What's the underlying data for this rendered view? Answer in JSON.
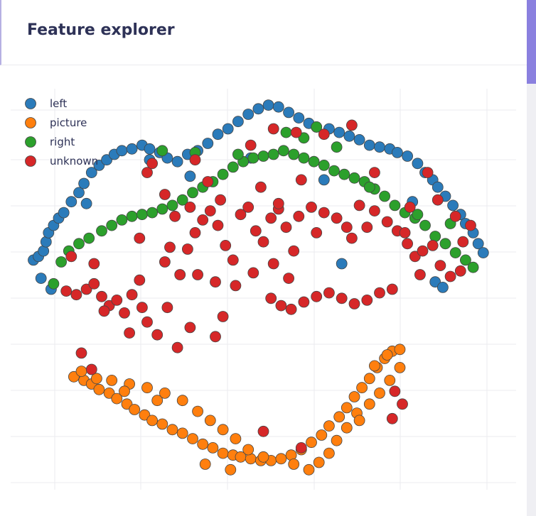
{
  "header": {
    "title": "Feature explorer"
  },
  "chart_data": {
    "type": "scatter",
    "title": "",
    "xlabel": "",
    "ylabel": "",
    "grid": true,
    "legend_position": "top-left",
    "series": [
      {
        "name": "left",
        "color": "#2b7bba",
        "points": [
          [
            -9.1,
            -3.4
          ],
          [
            -8.9,
            -3.2
          ],
          [
            -8.7,
            -2.9
          ],
          [
            -8.6,
            -2.4
          ],
          [
            -8.5,
            -1.9
          ],
          [
            -8.3,
            -1.5
          ],
          [
            -8.1,
            -1.1
          ],
          [
            -7.9,
            -0.8
          ],
          [
            -7.6,
            -0.2
          ],
          [
            -7.3,
            0.3
          ],
          [
            -7.1,
            0.8
          ],
          [
            -6.8,
            1.4
          ],
          [
            -6.5,
            1.8
          ],
          [
            -6.2,
            2.1
          ],
          [
            -5.9,
            2.4
          ],
          [
            -5.6,
            2.6
          ],
          [
            -5.2,
            2.7
          ],
          [
            -4.8,
            2.9
          ],
          [
            -4.5,
            2.7
          ],
          [
            -4.1,
            2.5
          ],
          [
            -3.8,
            2.2
          ],
          [
            -3.4,
            2.0
          ],
          [
            -3.0,
            2.4
          ],
          [
            -2.6,
            2.6
          ],
          [
            -2.2,
            3.0
          ],
          [
            -1.8,
            3.5
          ],
          [
            -1.4,
            3.8
          ],
          [
            -1.0,
            4.2
          ],
          [
            -0.6,
            4.6
          ],
          [
            -0.2,
            4.9
          ],
          [
            0.2,
            5.1
          ],
          [
            0.6,
            5.0
          ],
          [
            1.0,
            4.7
          ],
          [
            1.4,
            4.4
          ],
          [
            1.8,
            4.1
          ],
          [
            2.1,
            3.9
          ],
          [
            2.6,
            3.8
          ],
          [
            3.0,
            3.6
          ],
          [
            3.4,
            3.4
          ],
          [
            3.8,
            3.2
          ],
          [
            4.2,
            2.9
          ],
          [
            4.6,
            2.8
          ],
          [
            5.0,
            2.7
          ],
          [
            5.3,
            2.5
          ],
          [
            5.7,
            2.3
          ],
          [
            6.1,
            1.9
          ],
          [
            6.4,
            1.4
          ],
          [
            6.7,
            1.0
          ],
          [
            6.9,
            0.6
          ],
          [
            7.2,
            0.1
          ],
          [
            7.5,
            -0.4
          ],
          [
            7.8,
            -0.9
          ],
          [
            8.0,
            -1.4
          ],
          [
            8.3,
            -1.9
          ],
          [
            8.5,
            -2.5
          ],
          [
            8.7,
            -3.0
          ],
          [
            -8.8,
            -4.4
          ],
          [
            -8.4,
            -5.0
          ],
          [
            -7.0,
            -0.3
          ],
          [
            6.8,
            -4.6
          ],
          [
            7.1,
            -4.9
          ],
          [
            3.1,
            -3.6
          ],
          [
            -4.5,
            2.1
          ],
          [
            -2.9,
            1.2
          ],
          [
            -0.5,
            2.2
          ],
          [
            2.4,
            1.0
          ],
          [
            5.9,
            -0.2
          ]
        ]
      },
      {
        "name": "picture",
        "color": "#ff7f0e",
        "points": [
          [
            -7.5,
            -9.8
          ],
          [
            -7.1,
            -10.0
          ],
          [
            -6.8,
            -10.2
          ],
          [
            -6.5,
            -10.5
          ],
          [
            -6.1,
            -10.7
          ],
          [
            -5.8,
            -11.0
          ],
          [
            -5.4,
            -11.3
          ],
          [
            -5.1,
            -11.6
          ],
          [
            -4.7,
            -11.9
          ],
          [
            -4.4,
            -12.2
          ],
          [
            -4.0,
            -12.4
          ],
          [
            -3.6,
            -12.7
          ],
          [
            -3.2,
            -12.9
          ],
          [
            -2.8,
            -13.2
          ],
          [
            -2.4,
            -13.5
          ],
          [
            -2.0,
            -13.7
          ],
          [
            -1.6,
            -14.0
          ],
          [
            -1.2,
            -14.1
          ],
          [
            -0.9,
            -14.2
          ],
          [
            -0.5,
            -14.3
          ],
          [
            -0.1,
            -14.4
          ],
          [
            0.3,
            -14.4
          ],
          [
            0.7,
            -14.3
          ],
          [
            1.1,
            -14.1
          ],
          [
            1.5,
            -13.8
          ],
          [
            1.9,
            -13.4
          ],
          [
            2.3,
            -13.0
          ],
          [
            2.6,
            -12.5
          ],
          [
            3.0,
            -12.0
          ],
          [
            3.3,
            -11.5
          ],
          [
            3.6,
            -10.9
          ],
          [
            3.9,
            -10.4
          ],
          [
            4.2,
            -9.9
          ],
          [
            4.5,
            -9.3
          ],
          [
            4.8,
            -8.8
          ],
          [
            5.1,
            -8.4
          ],
          [
            5.4,
            -8.3
          ],
          [
            -6.0,
            -10.0
          ],
          [
            -5.3,
            -10.2
          ],
          [
            -4.6,
            -10.4
          ],
          [
            -3.9,
            -10.7
          ],
          [
            -3.2,
            -11.1
          ],
          [
            -2.6,
            -11.7
          ],
          [
            -2.1,
            -12.2
          ],
          [
            -1.6,
            -12.7
          ],
          [
            -1.1,
            -13.2
          ],
          [
            -0.6,
            -13.8
          ],
          [
            1.8,
            -14.9
          ],
          [
            2.2,
            -14.5
          ],
          [
            2.6,
            -14.0
          ],
          [
            2.9,
            -13.3
          ],
          [
            3.3,
            -12.6
          ],
          [
            3.7,
            -11.8
          ],
          [
            4.2,
            -11.3
          ],
          [
            4.6,
            -10.7
          ],
          [
            5.0,
            -10.0
          ],
          [
            5.4,
            -9.3
          ],
          [
            -2.3,
            -14.6
          ],
          [
            -1.3,
            -14.9
          ],
          [
            -4.2,
            -11.1
          ],
          [
            -5.5,
            -10.6
          ],
          [
            -7.2,
            -9.5
          ],
          [
            -6.6,
            -9.9
          ],
          [
            0.0,
            -14.2
          ],
          [
            1.2,
            -14.6
          ],
          [
            3.8,
            -12.2
          ],
          [
            4.4,
            -9.2
          ],
          [
            4.9,
            -8.6
          ]
        ]
      },
      {
        "name": "right",
        "color": "#2ca02c",
        "points": [
          [
            -8.3,
            -4.7
          ],
          [
            -8.0,
            -3.5
          ],
          [
            -7.7,
            -2.9
          ],
          [
            -7.3,
            -2.5
          ],
          [
            -6.9,
            -2.2
          ],
          [
            -6.4,
            -1.8
          ],
          [
            -6.0,
            -1.5
          ],
          [
            -5.6,
            -1.2
          ],
          [
            -5.2,
            -1.0
          ],
          [
            -4.8,
            -0.9
          ],
          [
            -4.4,
            -0.8
          ],
          [
            -4.0,
            -0.6
          ],
          [
            -3.6,
            -0.4
          ],
          [
            -3.2,
            -0.1
          ],
          [
            -2.8,
            0.3
          ],
          [
            -2.4,
            0.6
          ],
          [
            -2.0,
            0.9
          ],
          [
            -1.6,
            1.3
          ],
          [
            -1.2,
            1.7
          ],
          [
            -0.8,
            2.0
          ],
          [
            -0.4,
            2.2
          ],
          [
            0.0,
            2.3
          ],
          [
            0.4,
            2.4
          ],
          [
            0.8,
            2.6
          ],
          [
            1.2,
            2.4
          ],
          [
            1.6,
            2.2
          ],
          [
            2.0,
            2.0
          ],
          [
            2.4,
            1.8
          ],
          [
            2.8,
            1.5
          ],
          [
            3.2,
            1.3
          ],
          [
            3.6,
            1.1
          ],
          [
            4.0,
            0.9
          ],
          [
            4.4,
            0.5
          ],
          [
            4.8,
            0.1
          ],
          [
            5.2,
            -0.4
          ],
          [
            5.6,
            -0.8
          ],
          [
            6.0,
            -1.1
          ],
          [
            6.4,
            -1.5
          ],
          [
            6.8,
            -2.1
          ],
          [
            7.2,
            -2.5
          ],
          [
            7.6,
            -3.0
          ],
          [
            8.0,
            -3.4
          ],
          [
            8.3,
            -3.8
          ],
          [
            -4.0,
            2.6
          ],
          [
            -2.7,
            2.5
          ],
          [
            -1.0,
            2.4
          ],
          [
            1.6,
            3.3
          ],
          [
            2.9,
            2.8
          ],
          [
            4.2,
            0.6
          ],
          [
            6.1,
            -0.9
          ],
          [
            7.4,
            -1.4
          ],
          [
            0.9,
            3.6
          ],
          [
            2.1,
            3.9
          ]
        ]
      },
      {
        "name": "unknown",
        "color": "#d62728",
        "points": [
          [
            -7.8,
            -5.1
          ],
          [
            -7.4,
            -5.3
          ],
          [
            -7.0,
            -5.0
          ],
          [
            -6.7,
            -4.7
          ],
          [
            -6.4,
            -5.4
          ],
          [
            -6.1,
            -5.9
          ],
          [
            -5.8,
            -5.6
          ],
          [
            -5.5,
            -6.3
          ],
          [
            -5.2,
            -5.3
          ],
          [
            -4.9,
            -4.5
          ],
          [
            -4.6,
            -6.8
          ],
          [
            -4.2,
            -7.5
          ],
          [
            -3.8,
            -6.0
          ],
          [
            -3.3,
            -4.2
          ],
          [
            -3.0,
            -2.8
          ],
          [
            -2.7,
            -1.9
          ],
          [
            -2.4,
            -1.2
          ],
          [
            -2.1,
            -0.7
          ],
          [
            -1.8,
            -1.5
          ],
          [
            -1.5,
            -2.6
          ],
          [
            -1.2,
            -3.4
          ],
          [
            -0.9,
            -0.9
          ],
          [
            -0.6,
            -0.5
          ],
          [
            -0.3,
            -1.8
          ],
          [
            0.0,
            -2.4
          ],
          [
            0.3,
            -1.1
          ],
          [
            0.6,
            -0.6
          ],
          [
            0.9,
            -1.6
          ],
          [
            1.2,
            -2.9
          ],
          [
            -2.6,
            -4.2
          ],
          [
            -1.9,
            -4.6
          ],
          [
            -1.1,
            -4.8
          ],
          [
            -0.4,
            -4.1
          ],
          [
            0.4,
            -3.6
          ],
          [
            1.0,
            -4.4
          ],
          [
            -3.5,
            -1.0
          ],
          [
            -3.9,
            0.2
          ],
          [
            -4.6,
            1.4
          ],
          [
            -1.7,
            -0.1
          ],
          [
            -0.1,
            0.6
          ],
          [
            0.6,
            -0.3
          ],
          [
            1.4,
            -1.0
          ],
          [
            1.9,
            -0.5
          ],
          [
            2.4,
            -0.8
          ],
          [
            -2.9,
            -0.5
          ],
          [
            -2.2,
            0.9
          ],
          [
            2.1,
            -1.9
          ],
          [
            2.9,
            -1.1
          ],
          [
            3.3,
            -1.6
          ],
          [
            3.8,
            -0.4
          ],
          [
            4.4,
            -0.7
          ],
          [
            4.9,
            -1.3
          ],
          [
            5.3,
            -1.8
          ],
          [
            5.7,
            -2.5
          ],
          [
            6.0,
            -3.2
          ],
          [
            6.3,
            -2.9
          ],
          [
            6.7,
            -2.6
          ],
          [
            7.0,
            -3.7
          ],
          [
            7.4,
            -4.3
          ],
          [
            7.8,
            -4.0
          ],
          [
            6.2,
            -4.2
          ],
          [
            5.6,
            -1.9
          ],
          [
            4.1,
            -1.6
          ],
          [
            3.5,
            -2.2
          ],
          [
            0.3,
            -5.5
          ],
          [
            0.7,
            -5.9
          ],
          [
            1.1,
            -6.1
          ],
          [
            1.6,
            -5.7
          ],
          [
            2.1,
            -5.4
          ],
          [
            2.6,
            -5.2
          ],
          [
            3.1,
            -5.5
          ],
          [
            3.6,
            -5.8
          ],
          [
            4.1,
            -5.6
          ],
          [
            4.6,
            -5.2
          ],
          [
            5.1,
            -5.0
          ],
          [
            -5.3,
            -7.4
          ],
          [
            -6.3,
            -6.2
          ],
          [
            -1.6,
            -6.5
          ],
          [
            -1.9,
            -7.6
          ],
          [
            -2.9,
            -7.1
          ],
          [
            -7.2,
            -8.5
          ],
          [
            -6.8,
            -9.4
          ],
          [
            -3.4,
            -8.2
          ],
          [
            0.0,
            -12.8
          ],
          [
            1.5,
            -13.7
          ],
          [
            5.1,
            -12.1
          ],
          [
            5.2,
            -10.6
          ],
          [
            5.5,
            -11.3
          ],
          [
            -4.8,
            -6.0
          ],
          [
            -3.7,
            -2.7
          ],
          [
            -7.6,
            -3.2
          ],
          [
            -6.7,
            -3.6
          ],
          [
            -0.5,
            2.9
          ],
          [
            0.4,
            3.8
          ],
          [
            1.3,
            3.6
          ],
          [
            2.4,
            3.5
          ],
          [
            3.5,
            4.0
          ],
          [
            4.4,
            1.4
          ],
          [
            1.5,
            1.0
          ],
          [
            -4.4,
            1.9
          ],
          [
            -2.7,
            2.1
          ],
          [
            -4.9,
            -2.2
          ],
          [
            -3.9,
            -3.5
          ],
          [
            6.9,
            -0.1
          ],
          [
            5.8,
            -0.5
          ],
          [
            7.6,
            -1.0
          ],
          [
            6.5,
            1.4
          ],
          [
            7.9,
            -2.4
          ],
          [
            8.2,
            -1.5
          ]
        ]
      }
    ]
  }
}
